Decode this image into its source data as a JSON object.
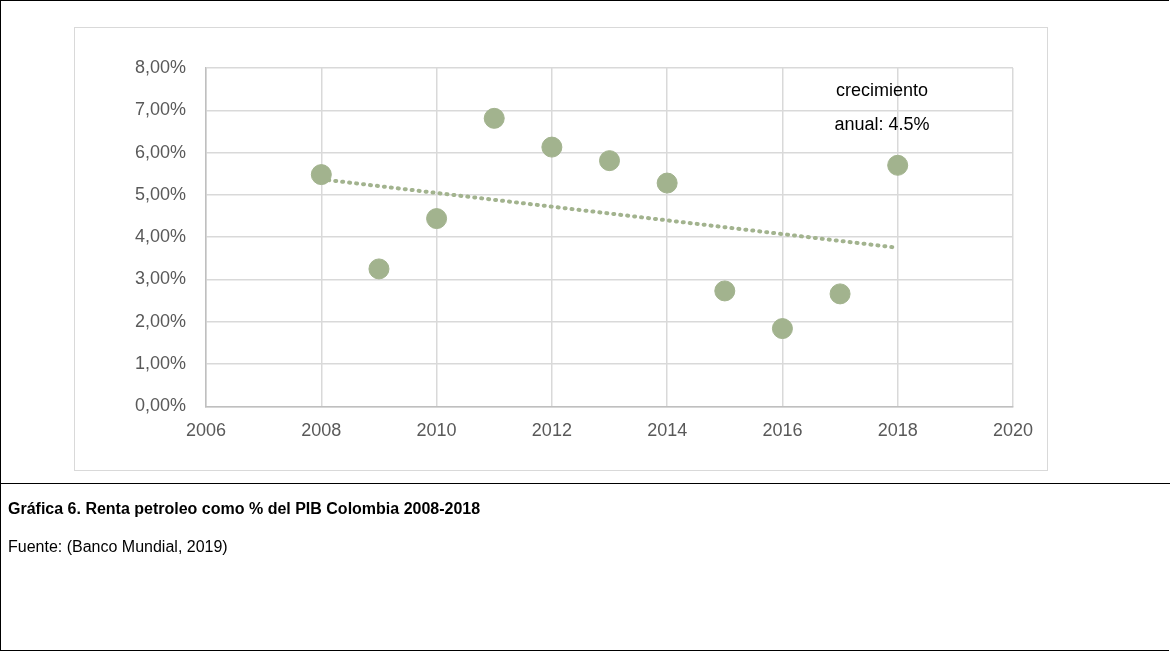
{
  "chart_data": {
    "type": "scatter",
    "title": "Gráfica 6. Renta petroleo como % del PIB Colombia 2008-2018",
    "annotations": [
      "crecimiento anual: 4.5%",
      "Fuente: (Banco Mundial, 2019)"
    ],
    "series": [
      {
        "type": "scatter",
        "color": "#a2b38e",
        "x": [
          2008,
          2009,
          2010,
          2011,
          2012,
          2013,
          2014,
          2015,
          2016,
          2017,
          2018
        ],
        "values": [
          5.48,
          3.25,
          4.44,
          6.81,
          6.13,
          5.81,
          5.28,
          2.73,
          1.84,
          2.66,
          5.7
        ],
        "marker": "circle"
      },
      {
        "type": "line",
        "color": "#a2b38e",
        "x": [
          2008,
          2018
        ],
        "values": [
          5.37,
          3.75
        ],
        "marker": "none",
        "line_style": "dotted"
      }
    ],
    "xlim": [
      2006,
      2020
    ],
    "xticks": [
      2006,
      2008,
      2010,
      2012,
      2014,
      2016,
      2018,
      2020
    ],
    "ylim": [
      0,
      8
    ],
    "yticks": [
      {
        "value": 0,
        "label": "0,00%"
      },
      {
        "value": 1,
        "label": "1,00%"
      },
      {
        "value": 2,
        "label": "2,00%"
      },
      {
        "value": 3,
        "label": "3,00%"
      },
      {
        "value": 4,
        "label": "4,00%"
      },
      {
        "value": 5,
        "label": "5,00%"
      },
      {
        "value": 6,
        "label": "6,00%"
      },
      {
        "value": 7,
        "label": "7,00%"
      },
      {
        "value": 8,
        "label": "8,00%"
      }
    ],
    "grid": true,
    "legend": false
  }
}
